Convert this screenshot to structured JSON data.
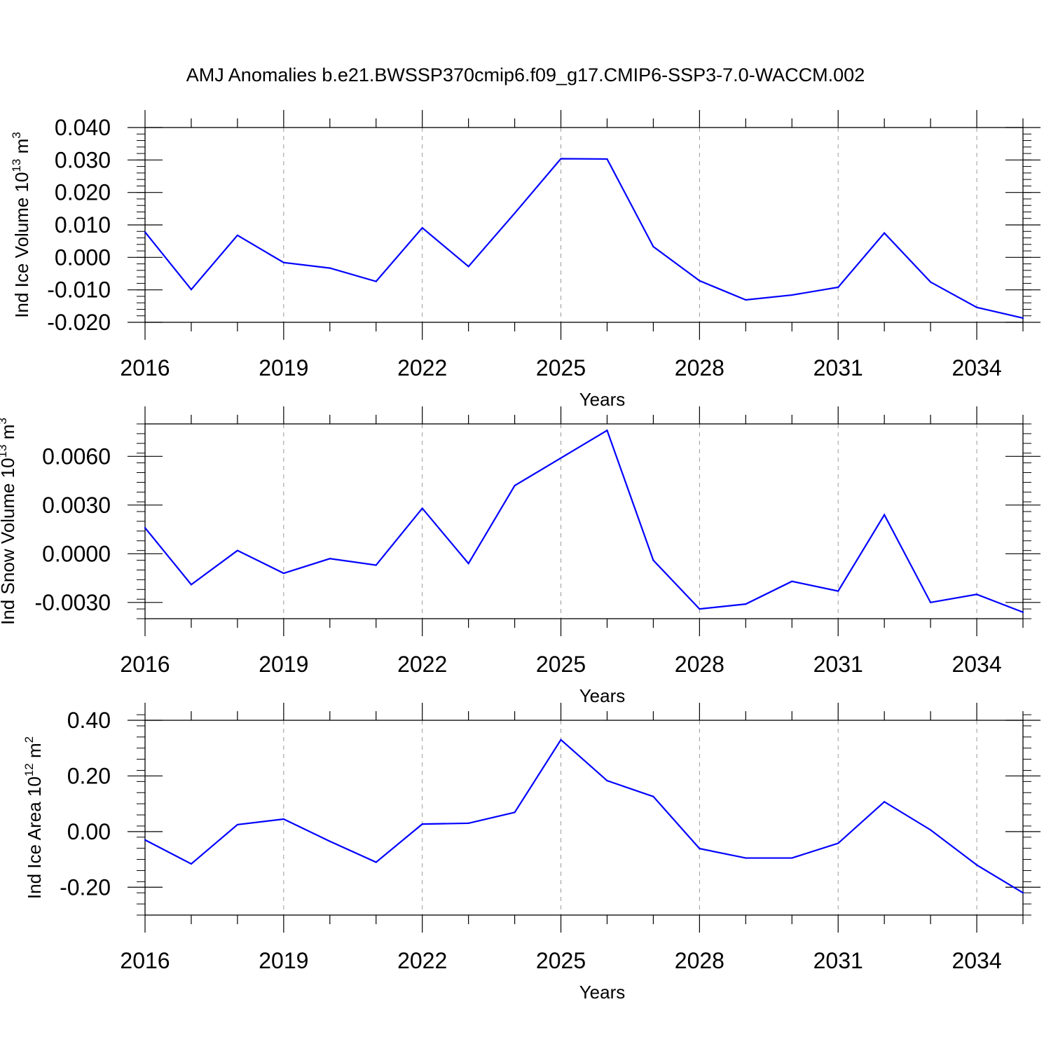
{
  "title": "AMJ Anomalies b.e21.BWSSP370cmip6.f09_g17.CMIP6-SSP3-7.0-WACCM.002",
  "colors": {
    "line": "#0000ff",
    "frame": "#000000",
    "grid": "#9a9a9a",
    "background": "#ffffff"
  },
  "chart_data": [
    {
      "type": "line",
      "ylabel": "Ind Ice Volume 10",
      "ylabel_exponent": "13",
      "ylabel_unit": "m",
      "ylabel_unit_exponent": "3",
      "xlabel": "Years",
      "xlim": [
        2016,
        2035
      ],
      "ylim": [
        -0.02,
        0.04
      ],
      "x_ticks": [
        2016,
        2019,
        2022,
        2025,
        2028,
        2031,
        2034
      ],
      "x_tick_labels": [
        "2016",
        "2019",
        "2022",
        "2025",
        "2028",
        "2031",
        "2034"
      ],
      "y_ticks": [
        -0.02,
        -0.01,
        0.0,
        0.01,
        0.02,
        0.03,
        0.04
      ],
      "y_tick_labels": [
        "-0.020",
        "-0.010",
        "0.000",
        "0.010",
        "0.020",
        "0.030",
        "0.040"
      ],
      "y_minor_step": 0.002,
      "x": [
        2016,
        2017,
        2018,
        2019,
        2020,
        2021,
        2022,
        2023,
        2024,
        2025,
        2026,
        2027,
        2028,
        2029,
        2030,
        2031,
        2032,
        2033,
        2034,
        2035
      ],
      "values": [
        0.0078,
        -0.0099,
        0.0068,
        -0.0016,
        -0.0033,
        -0.0074,
        0.0091,
        -0.0028,
        0.0136,
        0.0304,
        0.0303,
        0.0033,
        -0.0072,
        -0.0131,
        -0.0116,
        -0.0092,
        0.0075,
        -0.0076,
        -0.0154,
        -0.0187
      ]
    },
    {
      "type": "line",
      "ylabel": "Ind Snow Volume 10",
      "ylabel_exponent": "13",
      "ylabel_unit": "m",
      "ylabel_unit_exponent": "3",
      "xlabel": "Years",
      "xlim": [
        2016,
        2035
      ],
      "ylim": [
        -0.004,
        0.008
      ],
      "x_ticks": [
        2016,
        2019,
        2022,
        2025,
        2028,
        2031,
        2034
      ],
      "x_tick_labels": [
        "2016",
        "2019",
        "2022",
        "2025",
        "2028",
        "2031",
        "2034"
      ],
      "y_ticks": [
        -0.003,
        0.0,
        0.003,
        0.006
      ],
      "y_tick_labels": [
        "-0.0030",
        "0.0000",
        "0.0030",
        "0.0060"
      ],
      "y_minor_step": 0.0006,
      "x": [
        2016,
        2017,
        2018,
        2019,
        2020,
        2021,
        2022,
        2023,
        2024,
        2025,
        2026,
        2027,
        2028,
        2029,
        2030,
        2031,
        2032,
        2033,
        2034,
        2035
      ],
      "values": [
        0.0016,
        -0.0019,
        0.0002,
        -0.0012,
        -0.0003,
        -0.0007,
        0.0028,
        -0.0006,
        0.0042,
        0.0059,
        0.0076,
        -0.0004,
        -0.0034,
        -0.0031,
        -0.0017,
        -0.0023,
        0.0024,
        -0.003,
        -0.0025,
        -0.0036
      ]
    },
    {
      "type": "line",
      "ylabel": "Ind Ice Area 10",
      "ylabel_exponent": "12",
      "ylabel_unit": "m",
      "ylabel_unit_exponent": "2",
      "xlabel": "Years",
      "xlim": [
        2016,
        2035
      ],
      "ylim": [
        -0.3,
        0.4
      ],
      "x_ticks": [
        2016,
        2019,
        2022,
        2025,
        2028,
        2031,
        2034
      ],
      "x_tick_labels": [
        "2016",
        "2019",
        "2022",
        "2025",
        "2028",
        "2031",
        "2034"
      ],
      "y_ticks": [
        -0.2,
        0.0,
        0.2,
        0.4
      ],
      "y_tick_labels": [
        "-0.20",
        "0.00",
        "0.20",
        "0.40"
      ],
      "y_minor_step": 0.04,
      "x": [
        2016,
        2017,
        2018,
        2019,
        2020,
        2021,
        2022,
        2023,
        2024,
        2025,
        2026,
        2027,
        2028,
        2029,
        2030,
        2031,
        2032,
        2033,
        2034,
        2035
      ],
      "values": [
        -0.03,
        -0.116,
        0.025,
        0.045,
        -0.035,
        -0.11,
        0.027,
        0.03,
        0.069,
        0.33,
        0.183,
        0.126,
        -0.061,
        -0.095,
        -0.095,
        -0.042,
        0.107,
        0.006,
        -0.12,
        -0.22
      ]
    }
  ]
}
